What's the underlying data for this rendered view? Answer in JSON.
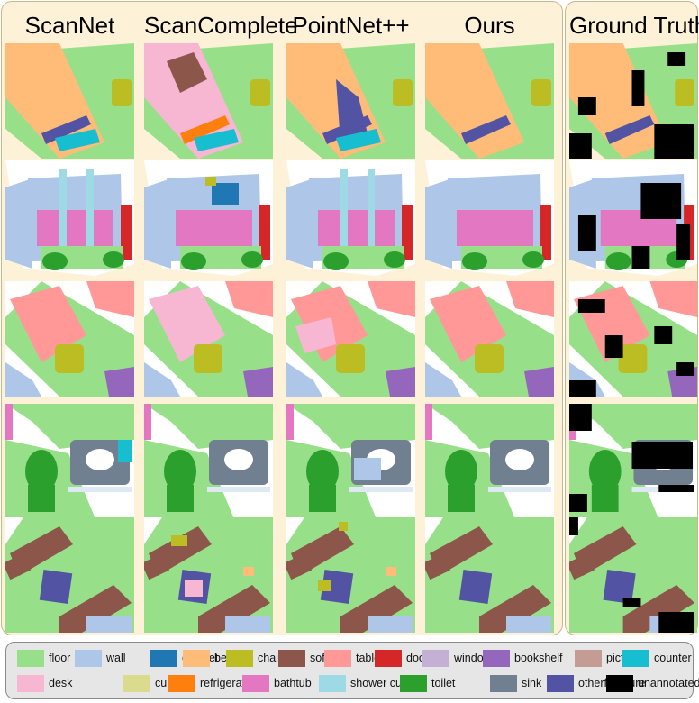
{
  "columns": [
    {
      "title": "ScanNet"
    },
    {
      "title": "ScanComplete"
    },
    {
      "title": "PointNet++"
    },
    {
      "title": "Ours"
    },
    {
      "title": "Ground Truth"
    }
  ],
  "legend": [
    {
      "label": "floor",
      "color": "#98df8a"
    },
    {
      "label": "wall",
      "color": "#aec7e8"
    },
    {
      "label": "cabinet",
      "color": "#1f77b4"
    },
    {
      "label": "bed",
      "color": "#ffbb78"
    },
    {
      "label": "chair",
      "color": "#bcbd22"
    },
    {
      "label": "sofa",
      "color": "#8c564b"
    },
    {
      "label": "table",
      "color": "#ff9896"
    },
    {
      "label": "door",
      "color": "#d62728"
    },
    {
      "label": "window",
      "color": "#c5b0d5"
    },
    {
      "label": "bookshelf",
      "color": "#9467bd"
    },
    {
      "label": "picture",
      "color": "#c49c94"
    },
    {
      "label": "counter",
      "color": "#17becf"
    },
    {
      "label": "desk",
      "color": "#f7b6d2"
    },
    {
      "label": "curtain",
      "color": "#dbdb8d"
    },
    {
      "label": "refrigerator",
      "color": "#ff7f0e"
    },
    {
      "label": "bathtub",
      "color": "#e377c2"
    },
    {
      "label": "shower curtain",
      "color": "#9edae5"
    },
    {
      "label": "toilet",
      "color": "#2ca02c"
    },
    {
      "label": "sink",
      "color": "#708090"
    },
    {
      "label": "otherfurniture",
      "color": "#5254a3"
    },
    {
      "label": "unannotated",
      "color": "#000000"
    }
  ]
}
